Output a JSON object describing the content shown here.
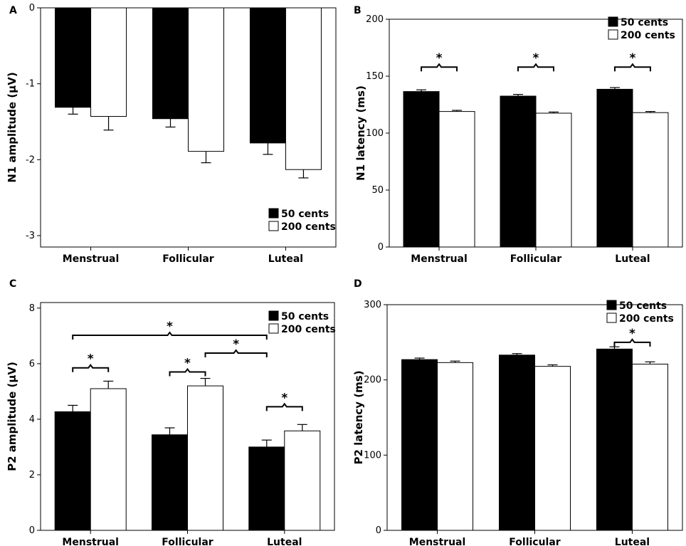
{
  "chart_data": [
    {
      "id": "A",
      "panel_label": "A",
      "type": "bar",
      "ylabel": "N1 amplitude (µV)",
      "xlabel": "",
      "ylim": [
        -3.15,
        0
      ],
      "yticks": [
        0,
        -1,
        -2,
        -3
      ],
      "ytick_labels": [
        "0",
        "-1",
        "-2",
        "-3"
      ],
      "inverted_bars": true,
      "categories": [
        "Menstrual",
        "Follicular",
        "Luteal"
      ],
      "series": [
        {
          "name": "50 cents",
          "color": "#000000",
          "values": [
            -1.31,
            -1.46,
            -1.78
          ],
          "errors": [
            0.09,
            0.11,
            0.15
          ]
        },
        {
          "name": "200 cents",
          "color": "#ffffff",
          "values": [
            -1.43,
            -1.89,
            -2.13
          ],
          "errors": [
            0.18,
            0.15,
            0.11
          ]
        }
      ],
      "legend": {
        "position": "bottom-right",
        "labels": [
          "50 cents",
          "200 cents"
        ]
      },
      "significance": []
    },
    {
      "id": "B",
      "panel_label": "B",
      "type": "bar",
      "ylabel": "N1 latency (ms)",
      "xlabel": "",
      "ylim": [
        0,
        200
      ],
      "yticks": [
        0,
        50,
        100,
        150,
        200
      ],
      "ytick_labels": [
        "0",
        "50",
        "100",
        "150",
        "200"
      ],
      "inverted_bars": false,
      "categories": [
        "Menstrual",
        "Follicular",
        "Luteal"
      ],
      "series": [
        {
          "name": "50 cents",
          "color": "#000000",
          "values": [
            136.5,
            132.5,
            138.5
          ],
          "errors": [
            1.5,
            1.5,
            1.5
          ]
        },
        {
          "name": "200 cents",
          "color": "#ffffff",
          "values": [
            119,
            117.5,
            118
          ],
          "errors": [
            1.0,
            1.0,
            1.0
          ]
        }
      ],
      "legend": {
        "position": "top-right",
        "labels": [
          "50 cents",
          "200 cents"
        ]
      },
      "significance": [
        {
          "from": [
            0,
            0
          ],
          "to": [
            0,
            1
          ],
          "y": 158,
          "label": "*"
        },
        {
          "from": [
            1,
            0
          ],
          "to": [
            1,
            1
          ],
          "y": 158,
          "label": "*"
        },
        {
          "from": [
            2,
            0
          ],
          "to": [
            2,
            1
          ],
          "y": 158,
          "label": "*"
        }
      ]
    },
    {
      "id": "C",
      "panel_label": "C",
      "type": "bar",
      "ylabel": "P2 amplitude (µV)",
      "xlabel": "",
      "ylim": [
        0,
        8.2
      ],
      "yticks": [
        0,
        2,
        4,
        6,
        8
      ],
      "ytick_labels": [
        "0",
        "2",
        "4",
        "6",
        "8"
      ],
      "inverted_bars": false,
      "categories": [
        "Menstrual",
        "Follicular",
        "Luteal"
      ],
      "series": [
        {
          "name": "50 cents",
          "color": "#000000",
          "values": [
            4.27,
            3.44,
            3.0
          ],
          "errors": [
            0.23,
            0.25,
            0.25
          ]
        },
        {
          "name": "200 cents",
          "color": "#ffffff",
          "values": [
            5.1,
            5.2,
            3.58
          ],
          "errors": [
            0.27,
            0.27,
            0.23
          ]
        }
      ],
      "legend": {
        "position": "top-right",
        "labels": [
          "50 cents",
          "200 cents"
        ]
      },
      "significance": [
        {
          "from": [
            0,
            0
          ],
          "to": [
            0,
            1
          ],
          "y": 5.85,
          "label": "*"
        },
        {
          "from": [
            1,
            0
          ],
          "to": [
            1,
            1
          ],
          "y": 5.7,
          "label": "*"
        },
        {
          "from": [
            2,
            0
          ],
          "to": [
            2,
            1
          ],
          "y": 4.45,
          "label": "*"
        },
        {
          "from": [
            0,
            0
          ],
          "to": [
            2,
            0
          ],
          "y": 7.02,
          "label": "*"
        },
        {
          "from": [
            1,
            1
          ],
          "to": [
            2,
            0
          ],
          "y": 6.38,
          "label": "*"
        }
      ]
    },
    {
      "id": "D",
      "panel_label": "D",
      "type": "bar",
      "ylabel": "P2 latency (ms)",
      "xlabel": "",
      "ylim": [
        0,
        300
      ],
      "yticks": [
        0,
        100,
        200,
        300
      ],
      "ytick_labels": [
        "0",
        "100",
        "200",
        "300"
      ],
      "inverted_bars": false,
      "categories": [
        "Menstrual",
        "Follicular",
        "Luteal"
      ],
      "series": [
        {
          "name": "50 cents",
          "color": "#000000",
          "values": [
            227,
            233,
            241
          ],
          "errors": [
            2,
            2,
            3
          ]
        },
        {
          "name": "200 cents",
          "color": "#ffffff",
          "values": [
            223,
            218,
            221
          ],
          "errors": [
            2,
            2,
            3
          ]
        }
      ],
      "legend": {
        "position": "top-right",
        "labels": [
          "50 cents",
          "200 cents"
        ]
      },
      "significance": [
        {
          "from": [
            2,
            0
          ],
          "to": [
            2,
            1
          ],
          "y": 250,
          "label": "*"
        }
      ]
    }
  ]
}
